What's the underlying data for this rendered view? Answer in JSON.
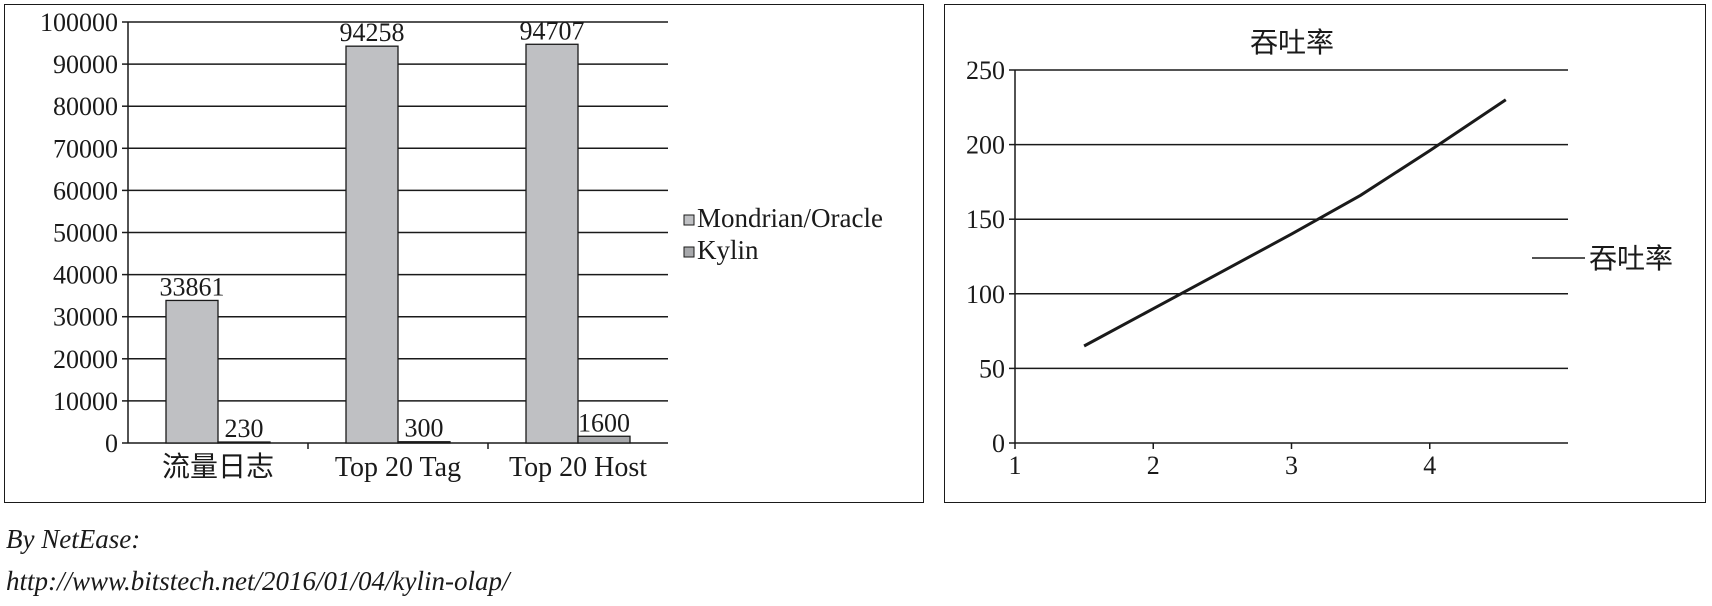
{
  "chart_data": [
    {
      "type": "bar",
      "title": "",
      "xlabel": "",
      "ylabel": "",
      "categories": [
        "流量日志",
        "Top 20 Tag",
        "Top 20 Host"
      ],
      "series": [
        {
          "name": "Mondrian/Oracle",
          "values": [
            33861,
            94258,
            94707
          ],
          "color": "#bfc0c3"
        },
        {
          "name": "Kylin",
          "values": [
            230,
            300,
            1600
          ],
          "color": "#a7a8ab"
        }
      ],
      "ylim": [
        0,
        100000
      ],
      "yticks": [
        "0",
        "10000",
        "20000",
        "30000",
        "40000",
        "50000",
        "60000",
        "70000",
        "80000",
        "90000",
        "100000"
      ],
      "data_labels": [
        [
          "33861",
          "94258",
          "94707"
        ],
        [
          "230",
          "300",
          "1600"
        ]
      ],
      "grid": true,
      "legend_position": "right"
    },
    {
      "type": "line",
      "title": "吞吐率",
      "xlabel": "",
      "ylabel": "",
      "x": [
        1.5,
        2.0,
        2.5,
        3.0,
        3.5,
        4.0,
        4.55
      ],
      "series": [
        {
          "name": "吞吐率",
          "values": [
            65,
            90,
            115,
            140,
            166,
            196,
            230
          ],
          "color": "#1a1a1a"
        }
      ],
      "xlim": [
        1,
        5
      ],
      "ylim": [
        0,
        250
      ],
      "xticks": [
        "1",
        "2",
        "3",
        "4"
      ],
      "yticks": [
        "0",
        "50",
        "100",
        "150",
        "200",
        "250"
      ],
      "grid": true,
      "legend_position": "right"
    }
  ],
  "credit": {
    "by": "By NetEase:",
    "url": "http://www.bitstech.net/2016/01/04/kylin-olap/"
  }
}
